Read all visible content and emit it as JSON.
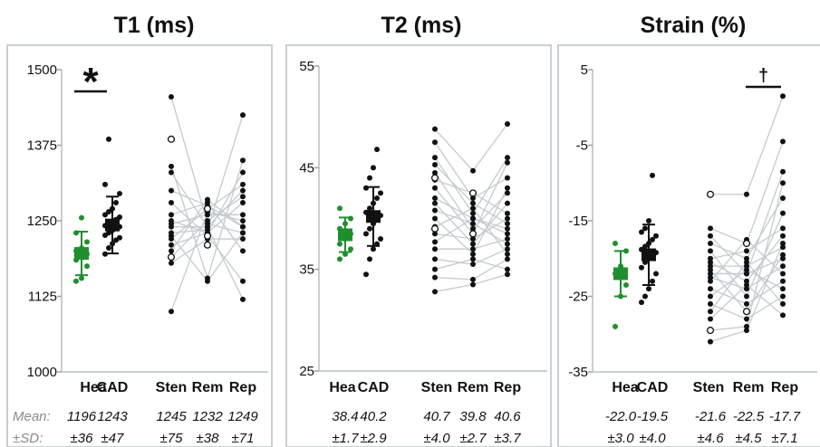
{
  "row_labels": {
    "mean": "Mean:",
    "sd": "±SD:"
  },
  "colors": {
    "healthy": "#1f8f2e",
    "patient": "#111111",
    "line": "#c4cbcf",
    "frame": "#c9cfd2"
  },
  "chart_data": [
    {
      "type": "scatter",
      "title": "T1 (ms)",
      "ylim": [
        1000,
        1500
      ],
      "yticks": [
        "1000",
        "1125",
        "1250",
        "1375",
        "1500"
      ],
      "categories": [
        "Hea",
        "CAD",
        "Sten",
        "Rem",
        "Rep"
      ],
      "mean_labels": [
        "1196",
        "1243",
        "1245",
        "1232",
        "1249"
      ],
      "sd_labels": [
        "±36",
        "±47",
        "±75",
        "±38",
        "±71"
      ],
      "significance": {
        "label": "*",
        "between": [
          "Hea",
          "CAD"
        ]
      },
      "grouped": {
        "Hea": {
          "mean": 1196,
          "sd": 36,
          "points": [
            1150,
            1155,
            1175,
            1185,
            1190,
            1195,
            1200,
            1205,
            1215,
            1230,
            1255
          ]
        },
        "CAD": {
          "mean": 1243,
          "sd": 47,
          "points": [
            1195,
            1205,
            1212,
            1218,
            1222,
            1226,
            1230,
            1234,
            1237,
            1240,
            1242,
            1245,
            1248,
            1252,
            1256,
            1260,
            1265,
            1270,
            1280,
            1295,
            1310,
            1385
          ]
        }
      },
      "paired": {
        "Sten": [
          1455,
          1340,
          1330,
          1300,
          1280,
          1260,
          1250,
          1245,
          1240,
          1230,
          1225,
          1220,
          1210,
          1200,
          1190,
          1180,
          1100
        ],
        "Rem": [
          1245,
          1155,
          1240,
          1275,
          1225,
          1280,
          1230,
          1260,
          1240,
          1235,
          1150,
          1270,
          1230,
          1285,
          1250,
          1220,
          1265
        ],
        "Rep": [
          1230,
          1350,
          1300,
          1240,
          1150,
          1200,
          1330,
          1260,
          1120,
          1425,
          1230,
          1310,
          1280,
          1240,
          1290,
          1220,
          1250
        ],
        "open": [
          [
            0,
            1385
          ],
          [
            1,
            1210
          ],
          [
            0,
            1190
          ],
          [
            1,
            1270
          ],
          [
            1,
            1225
          ]
        ]
      }
    },
    {
      "type": "scatter",
      "title": "T2 (ms)",
      "ylim": [
        25,
        55
      ],
      "yticks": [
        "25",
        "35",
        "45",
        "55"
      ],
      "categories": [
        "Hea",
        "CAD",
        "Sten",
        "Rem",
        "Rep"
      ],
      "mean_labels": [
        "38.4",
        "40.2",
        "40.7",
        "39.8",
        "40.6"
      ],
      "sd_labels": [
        "±1.7",
        "±2.9",
        "±4.0",
        "±2.7",
        "±3.7"
      ],
      "grouped": {
        "Hea": {
          "mean": 38.4,
          "sd": 1.7,
          "points": [
            36.0,
            36.5,
            37.0,
            37.5,
            38.0,
            38.5,
            39.0,
            39.5,
            40.0,
            41.0
          ]
        },
        "CAD": {
          "mean": 40.2,
          "sd": 2.9,
          "points": [
            34.5,
            36.0,
            37.0,
            37.5,
            38.0,
            38.5,
            39.0,
            39.5,
            40.0,
            40.3,
            40.6,
            41.0,
            41.5,
            42.0,
            42.5,
            43.0,
            44.0,
            45.0,
            46.8
          ]
        }
      },
      "paired": {
        "Sten": [
          48.8,
          47.5,
          46.0,
          45.3,
          44.5,
          43.8,
          43.0,
          42.0,
          41.5,
          40.8,
          40.0,
          39.2,
          38.5,
          37.7,
          37.0,
          36.0,
          35.0,
          34.2,
          32.8
        ],
        "Rem": [
          44.7,
          42.0,
          40.5,
          41.5,
          39.0,
          42.5,
          38.5,
          40.0,
          37.5,
          39.5,
          36.5,
          41.0,
          38.0,
          40.0,
          37.0,
          35.5,
          36.0,
          34.0,
          33.5
        ],
        "Rep": [
          49.3,
          44.0,
          46.0,
          39.5,
          42.5,
          40.5,
          45.5,
          38.5,
          41.5,
          37.5,
          43.0,
          36.5,
          40.0,
          39.0,
          38.0,
          37.0,
          35.0,
          36.0,
          34.5
        ],
        "open": [
          [
            0,
            44.0
          ],
          [
            1,
            42.5
          ],
          [
            1,
            38.5
          ],
          [
            0,
            39.0
          ]
        ]
      }
    },
    {
      "type": "scatter",
      "title": "Strain (%)",
      "ylim": [
        -35,
        5
      ],
      "yticks": [
        "-35",
        "-25",
        "-15",
        "-5",
        "5"
      ],
      "categories": [
        "Hea",
        "CAD",
        "Sten",
        "Rem",
        "Rep"
      ],
      "mean_labels": [
        "-22.0",
        "-19.5",
        "-21.6",
        "-22.5",
        "-17.7"
      ],
      "sd_labels": [
        "±3.0",
        "±4.0",
        "±4.6",
        "±4.5",
        "±7.1"
      ],
      "significance": {
        "label": "†",
        "between": [
          "Rem",
          "Rep"
        ]
      },
      "grouped": {
        "Hea": {
          "mean": -22.0,
          "sd": 3.0,
          "points": [
            -29.0,
            -25.0,
            -23.5,
            -22.0,
            -21.0,
            -19.0,
            -18.0
          ]
        },
        "CAD": {
          "mean": -19.5,
          "sd": 4.0,
          "points": [
            -25.8,
            -25.0,
            -24.0,
            -23.0,
            -22.0,
            -21.2,
            -20.5,
            -20.0,
            -19.6,
            -19.2,
            -18.8,
            -18.4,
            -18.0,
            -17.5,
            -17.0,
            -16.5,
            -16.0,
            -15.0,
            -9.0
          ]
        }
      },
      "paired": {
        "Sten": [
          -11.5,
          -16.0,
          -17.0,
          -18.0,
          -19.0,
          -20.0,
          -20.5,
          -21.0,
          -21.5,
          -22.0,
          -22.5,
          -23.0,
          -24.0,
          -25.0,
          -26.0,
          -27.0,
          -28.0,
          -29.5,
          -31.0
        ],
        "Rem": [
          -11.5,
          -18.0,
          -22.0,
          -20.0,
          -25.0,
          -19.0,
          -23.0,
          -21.0,
          -27.0,
          -22.0,
          -24.0,
          -17.5,
          -26.0,
          -21.5,
          -28.0,
          -20.5,
          -23.5,
          -29.0,
          -29.5
        ],
        "Rep": [
          1.5,
          -4.5,
          -8.5,
          -12.0,
          -14.0,
          -16.0,
          -17.0,
          -18.5,
          -19.5,
          -20.0,
          -21.0,
          -22.0,
          -23.0,
          -24.0,
          -25.0,
          -26.0,
          -27.5,
          -10.0,
          -18.0
        ],
        "open": [
          [
            0,
            -11.5
          ],
          [
            1,
            -18.0
          ],
          [
            0,
            -29.5
          ],
          [
            1,
            -27.0
          ]
        ]
      }
    }
  ]
}
